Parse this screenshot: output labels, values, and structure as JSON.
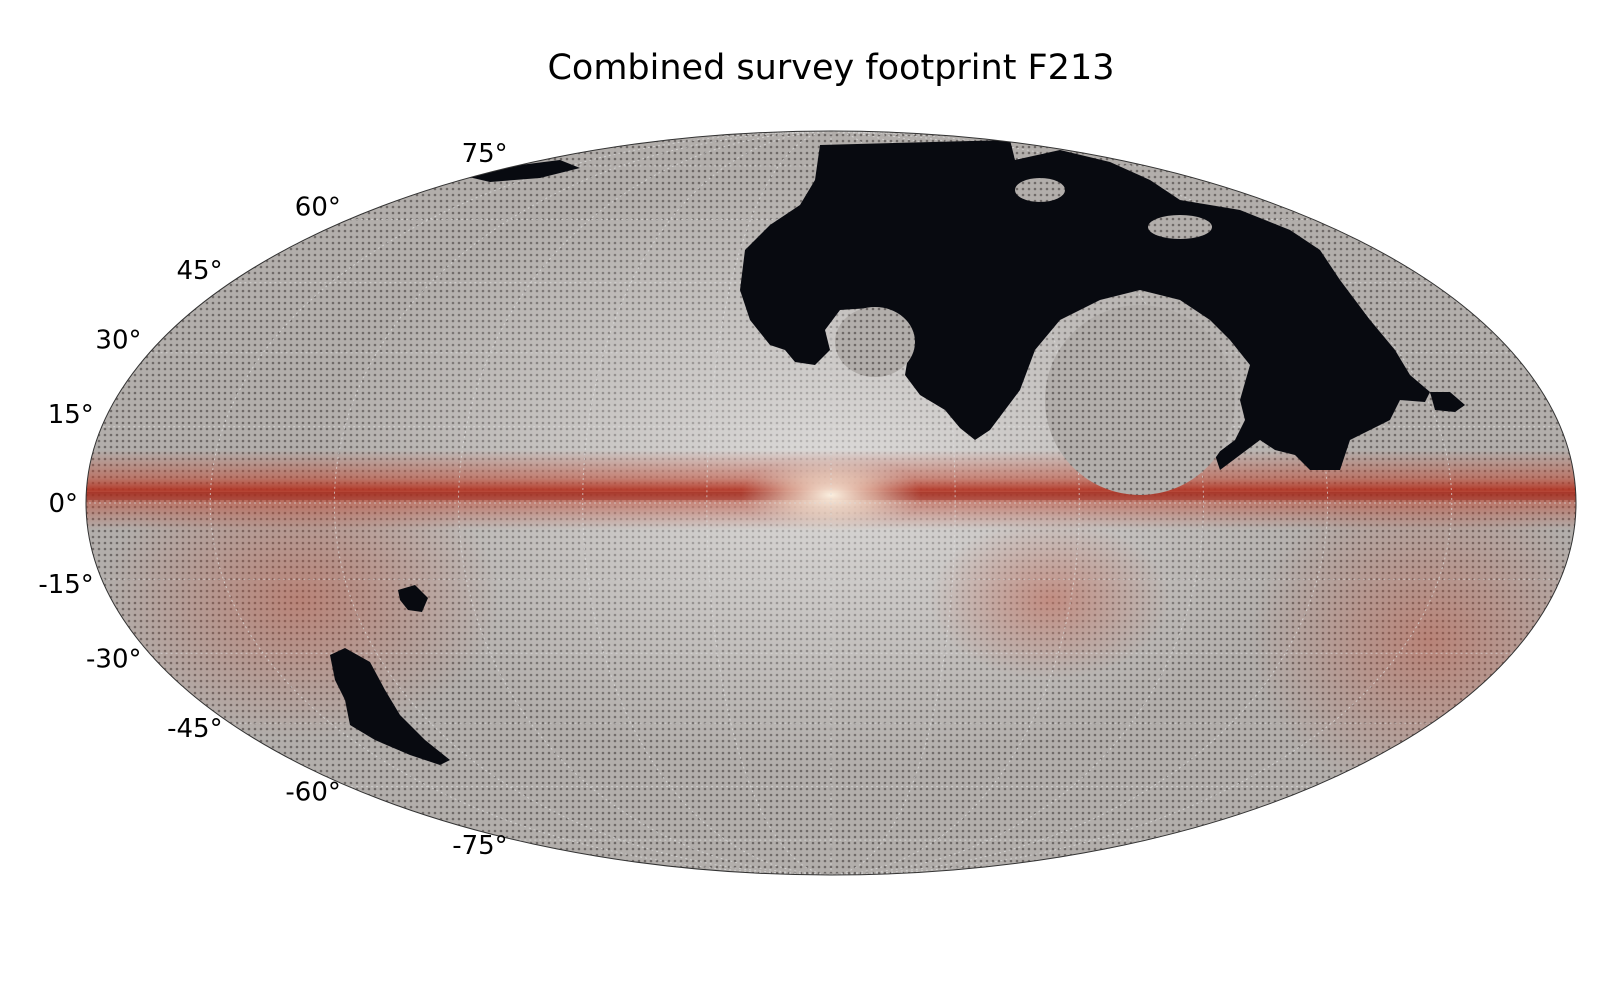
{
  "title": "Combined survey footprint F213",
  "projection": "mollweide",
  "coordinate_frame": "galactic",
  "latitude_labels": [
    {
      "lat": 75,
      "text": "75°"
    },
    {
      "lat": 60,
      "text": "60°"
    },
    {
      "lat": 45,
      "text": "45°"
    },
    {
      "lat": 30,
      "text": "30°"
    },
    {
      "lat": 15,
      "text": "15°"
    },
    {
      "lat": 0,
      "text": "0°"
    },
    {
      "lat": -15,
      "text": "-15°"
    },
    {
      "lat": -30,
      "text": "-30°"
    },
    {
      "lat": -45,
      "text": "-45°"
    },
    {
      "lat": -60,
      "text": "-60°"
    },
    {
      "lat": -75,
      "text": "-75°"
    }
  ],
  "colors": {
    "covered_sky": "#b2aeab",
    "uncovered_sky": "#080a10",
    "galactic_plane": "#c8402a",
    "galactic_bulge": "#f4e6c8",
    "graticule": "#d8d8d8"
  },
  "uncovered_regions": [
    "northern-gap-region",
    "southern-gap-large",
    "southern-gap-small"
  ]
}
